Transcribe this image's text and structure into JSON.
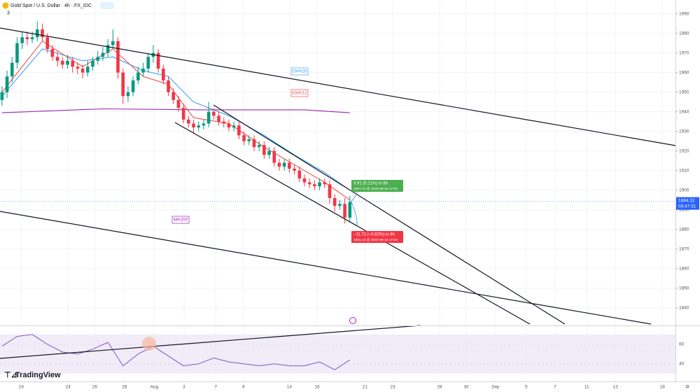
{
  "chart_data": {
    "type": "candlestick",
    "title": "Gold Spot / U.S. Dollar · 4h · FX_IDC",
    "indicator_count": "3",
    "brand": "TradingView",
    "xlim": [
      -0.4,
      133.6
    ],
    "xticks": [
      {
        "value": 3.8,
        "label": "19"
      },
      {
        "value": 13.1,
        "label": "24"
      },
      {
        "value": 18.4,
        "label": "26"
      },
      {
        "value": 24.3,
        "label": "28"
      },
      {
        "value": 30.2,
        "label": "Aug"
      },
      {
        "value": 36.1,
        "label": "3"
      },
      {
        "value": 42.4,
        "label": "7"
      },
      {
        "value": 47.9,
        "label": "9"
      },
      {
        "value": 57.0,
        "label": "14"
      },
      {
        "value": 62.5,
        "label": "16"
      },
      {
        "value": 72.0,
        "label": "21"
      },
      {
        "value": 77.5,
        "label": "23"
      },
      {
        "value": 86.8,
        "label": "28"
      },
      {
        "value": 92.1,
        "label": "30"
      },
      {
        "value": 97.9,
        "label": "Sep"
      },
      {
        "value": 104.0,
        "label": "5"
      },
      {
        "value": 109.7,
        "label": "7"
      },
      {
        "value": 116.0,
        "label": "11"
      },
      {
        "value": 121.7,
        "label": "13"
      },
      {
        "value": 131.0,
        "label": "18"
      }
    ],
    "ylim": [
      1831,
      1997
    ],
    "yticks": [
      1840,
      1850,
      1860,
      1870,
      1880,
      1890,
      1900,
      1910,
      1920,
      1930,
      1940,
      1950,
      1960,
      1970,
      1980,
      1990
    ],
    "up_color": "#089981",
    "down_color": "#f23645",
    "open": [
      1946,
      1950,
      1958,
      1965,
      1975,
      1978,
      1977,
      1978,
      1982,
      1978,
      1972,
      1968,
      1966,
      1964,
      1966,
      1963,
      1962,
      1960,
      1963,
      1966,
      1968,
      1970,
      1974,
      1976,
      1960,
      1948,
      1950,
      1956,
      1960,
      1962,
      1968,
      1970,
      1962,
      1956,
      1950,
      1946,
      1942,
      1936,
      1934,
      1932,
      1933,
      1934,
      1940,
      1938,
      1935,
      1934,
      1932,
      1933,
      1928,
      1925,
      1926,
      1922,
      1923,
      1918,
      1920,
      1914,
      1912,
      1914,
      1911,
      1910,
      1906,
      1904,
      1903,
      1902,
      1904,
      1903,
      1896,
      1892,
      1893,
      1886
    ],
    "high": [
      1953,
      1961,
      1968,
      1978,
      1981,
      1981,
      1981,
      1986,
      1985,
      1980,
      1974,
      1971,
      1968,
      1969,
      1968,
      1965,
      1964,
      1966,
      1968,
      1971,
      1973,
      1977,
      1982,
      1978,
      1962,
      1953,
      1958,
      1963,
      1965,
      1970,
      1974,
      1972,
      1964,
      1958,
      1952,
      1948,
      1944,
      1938,
      1936,
      1935,
      1936,
      1945,
      1942,
      1940,
      1937,
      1936,
      1935,
      1935,
      1930,
      1928,
      1928,
      1925,
      1925,
      1922,
      1922,
      1916,
      1916,
      1916,
      1913,
      1912,
      1908,
      1906,
      1905,
      1906,
      1906,
      1905,
      1898,
      1895,
      1896,
      1897
    ],
    "low": [
      1943,
      1947,
      1955,
      1962,
      1972,
      1974,
      1975,
      1976,
      1976,
      1970,
      1966,
      1963,
      1962,
      1962,
      1960,
      1959,
      1957,
      1958,
      1961,
      1964,
      1966,
      1968,
      1972,
      1957,
      1944,
      1945,
      1948,
      1954,
      1958,
      1960,
      1965,
      1960,
      1954,
      1948,
      1944,
      1940,
      1934,
      1932,
      1929,
      1930,
      1931,
      1932,
      1936,
      1933,
      1932,
      1930,
      1930,
      1926,
      1923,
      1923,
      1920,
      1920,
      1916,
      1916,
      1912,
      1910,
      1910,
      1909,
      1908,
      1904,
      1902,
      1901,
      1900,
      1900,
      1901,
      1893,
      1889,
      1890,
      1883,
      1884
    ],
    "close": [
      1950,
      1958,
      1965,
      1975,
      1978,
      1977,
      1978,
      1982,
      1978,
      1972,
      1968,
      1966,
      1964,
      1966,
      1963,
      1962,
      1960,
      1963,
      1966,
      1968,
      1970,
      1974,
      1976,
      1960,
      1948,
      1950,
      1956,
      1960,
      1962,
      1968,
      1970,
      1962,
      1956,
      1950,
      1946,
      1942,
      1936,
      1934,
      1932,
      1933,
      1934,
      1940,
      1938,
      1935,
      1934,
      1932,
      1933,
      1928,
      1925,
      1926,
      1922,
      1923,
      1918,
      1920,
      1914,
      1912,
      1914,
      1911,
      1910,
      1906,
      1904,
      1903,
      1902,
      1904,
      1903,
      1896,
      1892,
      1893,
      1886,
      1894
    ],
    "overlays": [
      {
        "name": "EMA26",
        "color": "#42a5f5",
        "x": [
          0,
          8,
          16,
          22,
          28,
          33,
          38,
          45,
          52,
          58,
          64,
          69
        ],
        "values": [
          1948,
          1972,
          1966,
          1968,
          1961,
          1958,
          1945,
          1938,
          1928,
          1918,
          1909,
          1900
        ]
      },
      {
        "name": "EMA12",
        "color": "#ef5350",
        "x": [
          0,
          8,
          16,
          22,
          28,
          33,
          38,
          45,
          52,
          58,
          64,
          69
        ],
        "values": [
          1950,
          1976,
          1963,
          1972,
          1958,
          1954,
          1937,
          1934,
          1922,
          1913,
          1904,
          1895
        ]
      },
      {
        "name": "MA200",
        "color": "#9c27b0",
        "x": [
          0,
          20,
          40,
          60,
          69
        ],
        "values": [
          1939.5,
          1941.5,
          1941,
          1941,
          1939.5
        ]
      }
    ],
    "last_price": 1894.32,
    "countdown": "03:47:31",
    "projections": [
      {
        "change": "3.91 (0.21%) in 8h",
        "target": "1897.74 @ 2023-08-18  17:00",
        "color": "#4caf50"
      },
      {
        "change": "−11.72 (−0.62%) in 8h",
        "target": "1881.44 @ 2023-08-18  17:00",
        "color": "#f23645"
      }
    ],
    "rsi": {
      "color": "#7e57c2",
      "ylim": [
        22,
        77
      ],
      "yticks": [
        40,
        60
      ],
      "band": [
        30,
        70
      ],
      "x": [
        0,
        3,
        6,
        9,
        12,
        15,
        18,
        21,
        24,
        27,
        30,
        33,
        36,
        39,
        42,
        45,
        48,
        51,
        54,
        57,
        60,
        63,
        66,
        69
      ],
      "values": [
        58,
        68,
        70,
        60,
        52,
        50,
        55,
        62,
        38,
        50,
        58,
        48,
        38,
        40,
        46,
        42,
        40,
        38,
        40,
        38,
        38,
        42,
        34,
        44
      ]
    }
  }
}
